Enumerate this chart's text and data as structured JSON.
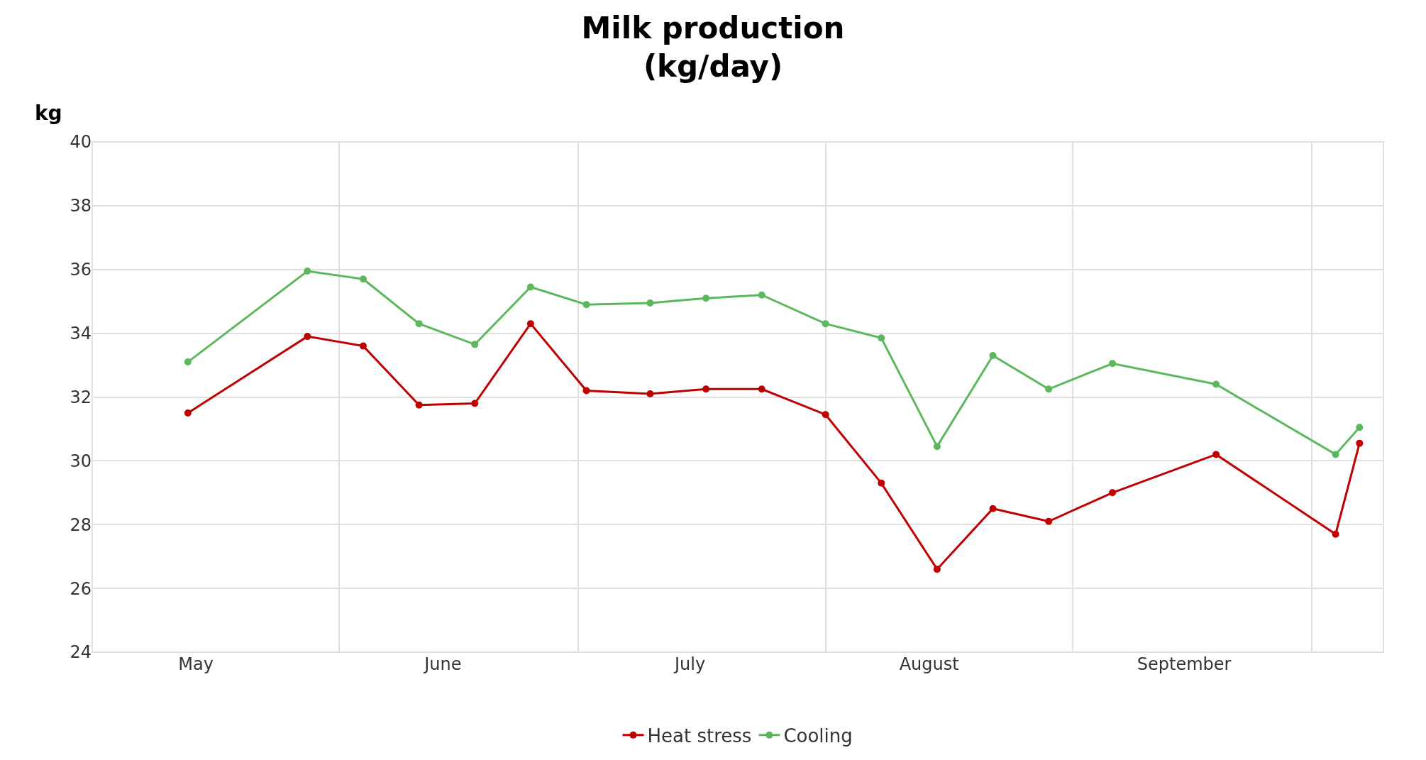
{
  "chart_data": {
    "type": "line",
    "title": "Milk production\n(kg/day)",
    "ylabel": "kg",
    "x": [
      "--05-13",
      "--05-28",
      "--06-04",
      "--06-11",
      "--06-18",
      "--06-25",
      "--07-02",
      "--07-10",
      "--07-17",
      "--07-24",
      "--08-01",
      "--08-08",
      "--08-15",
      "--08-22",
      "--08-29",
      "--09-06",
      "--09-19",
      "--10-04",
      "--10-07"
    ],
    "series": [
      {
        "name": "Heat stress",
        "color": "#c00000",
        "values": [
          31.5,
          33.9,
          33.6,
          31.75,
          31.8,
          34.3,
          32.2,
          32.1,
          32.25,
          32.25,
          31.45,
          29.3,
          26.6,
          28.5,
          28.1,
          29.0,
          30.2,
          27.7,
          30.55
        ]
      },
      {
        "name": "Cooling",
        "color": "#5cb85c",
        "values": [
          33.1,
          35.95,
          35.7,
          34.3,
          33.65,
          35.45,
          34.9,
          34.95,
          35.1,
          35.2,
          34.3,
          33.85,
          30.45,
          33.3,
          32.25,
          33.05,
          32.4,
          30.2,
          31.05
        ]
      }
    ],
    "xlim": [
      "--05-01",
      "--10-10"
    ],
    "xticks": [
      {
        "value": "--05-14",
        "label": "May"
      },
      {
        "value": "--06-01",
        "label": null
      },
      {
        "value": "--06-14",
        "label": "June"
      },
      {
        "value": "--07-01",
        "label": null
      },
      {
        "value": "--07-15",
        "label": "July"
      },
      {
        "value": "--08-01",
        "label": null
      },
      {
        "value": "--08-14",
        "label": "August"
      },
      {
        "value": "--09-01",
        "label": null
      },
      {
        "value": "--09-15",
        "label": "September"
      },
      {
        "value": "--10-01",
        "label": null
      }
    ],
    "ylim": [
      24,
      40
    ],
    "yticks": [
      24,
      26,
      28,
      30,
      32,
      34,
      36,
      38,
      40
    ],
    "grid": true,
    "legend": "bottom",
    "marker": "circle",
    "line_style": "solid"
  }
}
